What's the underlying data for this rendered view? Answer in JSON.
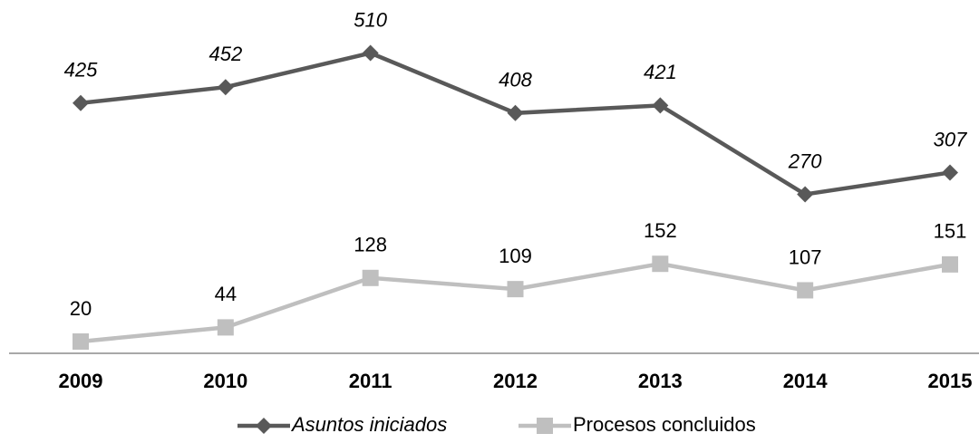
{
  "chart_data": {
    "type": "line",
    "categories": [
      "2009",
      "2010",
      "2011",
      "2012",
      "2013",
      "2014",
      "2015"
    ],
    "series": [
      {
        "name": "Asuntos iniciados",
        "color": "#595959",
        "marker": "diamond",
        "values": [
          425,
          452,
          510,
          408,
          421,
          270,
          307
        ]
      },
      {
        "name": "Procesos concluidos",
        "color": "#bfbfbf",
        "marker": "square",
        "values": [
          20,
          44,
          128,
          109,
          152,
          107,
          151
        ]
      }
    ],
    "ylim": [
      0,
      600
    ],
    "legend": "bottom"
  }
}
